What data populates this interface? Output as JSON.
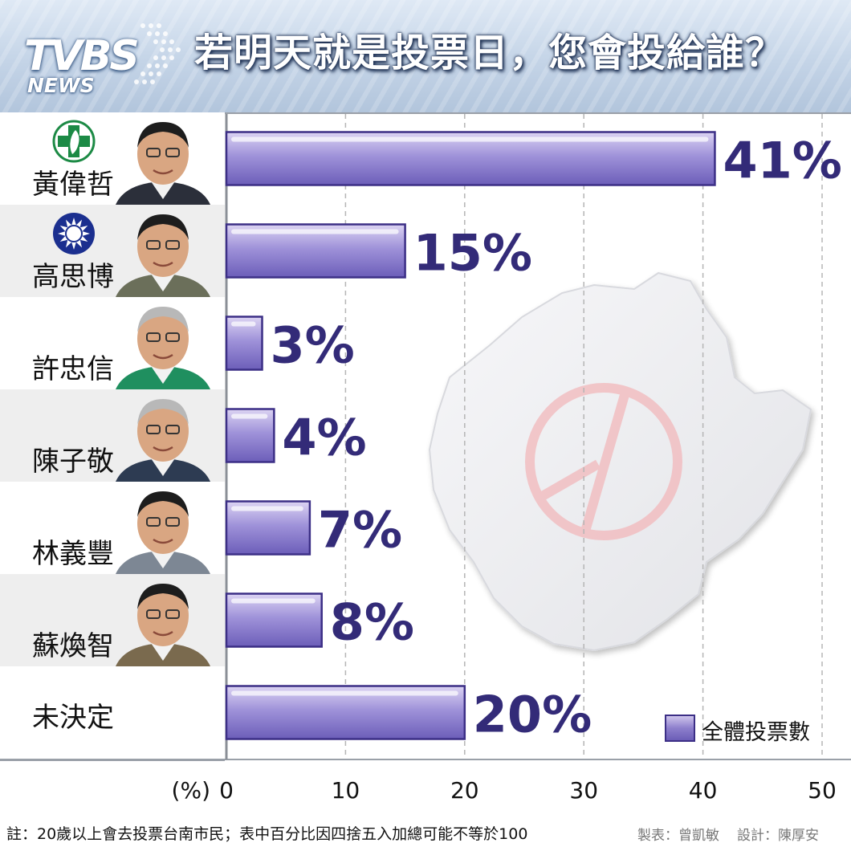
{
  "header": {
    "title": "若明天就是投票日，您會投給誰？",
    "logo_main": "TVBS",
    "logo_sub": "NEWS"
  },
  "candidates": [
    {
      "name": "黃偉哲",
      "party_icon": "dpp-taiwan-map-icon"
    },
    {
      "name": "高思博",
      "party_icon": "kmt-sun-icon"
    },
    {
      "name": "許忠信",
      "party_icon": ""
    },
    {
      "name": "陳子敬",
      "party_icon": ""
    },
    {
      "name": "林義豐",
      "party_icon": ""
    },
    {
      "name": "蘇煥智",
      "party_icon": ""
    },
    {
      "name": "未決定",
      "party_icon": ""
    }
  ],
  "chart_data": {
    "type": "bar",
    "orientation": "horizontal",
    "categories": [
      "黃偉哲",
      "高思博",
      "許忠信",
      "陳子敬",
      "林義豐",
      "蘇煥智",
      "未決定"
    ],
    "series": [
      {
        "name": "全體投票數",
        "values": [
          41,
          15,
          3,
          4,
          7,
          8,
          20
        ]
      }
    ],
    "value_labels": [
      "41%",
      "15%",
      "3%",
      "4%",
      "7%",
      "8%",
      "20%"
    ],
    "xlabel": "(%)",
    "xlim": [
      0,
      50
    ],
    "xticks": [
      0,
      10,
      20,
      30,
      40,
      50
    ],
    "grid": "vertical dashed",
    "legend_position": "bottom-right",
    "colors": {
      "bar_top": "#d6cdf0",
      "bar_mid": "#9a8cd6",
      "bar_bottom": "#6e60bc",
      "bar_border": "#3c2f86",
      "value_label": "#332b78",
      "grid": "#b5b5b5",
      "watermark_circle": "#f2b8bb"
    }
  },
  "footnote": "註：20歲以上會去投票台南市民；表中百分比因四捨五入加總可能不等於100",
  "credits": {
    "maker": "製表：曾凱敏",
    "designer": "設計：陳厚安"
  }
}
